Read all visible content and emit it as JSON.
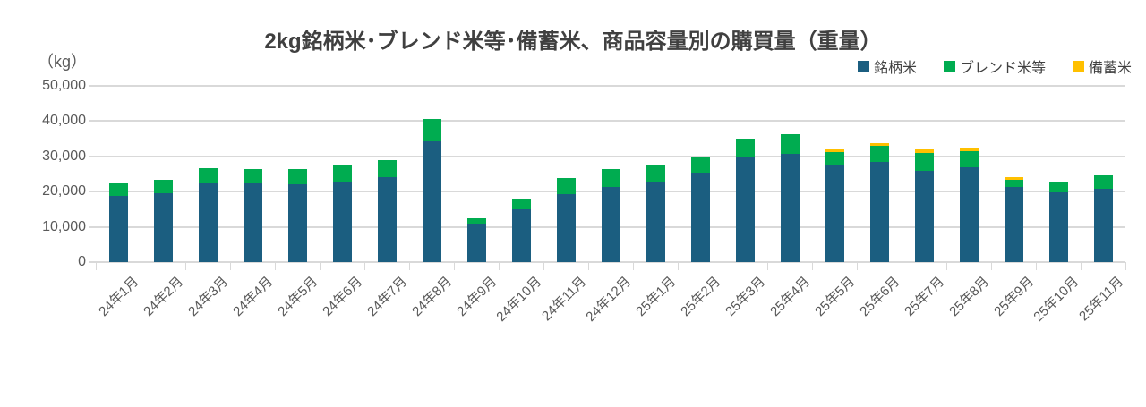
{
  "chart_data": {
    "type": "bar",
    "stacked": true,
    "title": "2kg銘柄米･ブレンド米等･備蓄米、商品容量別の購買量（重量）",
    "unit_label": "（kg）",
    "grid": true,
    "legend_position": "top-right",
    "ylim": [
      0,
      50000
    ],
    "ytick_interval": 10000,
    "ytick_labels": [
      "50,000",
      "40,000",
      "30,000",
      "20,000",
      "10,000",
      "0"
    ],
    "categories": [
      "24年1月",
      "24年2月",
      "24年3月",
      "24年4月",
      "24年5月",
      "24年6月",
      "24年7月",
      "24年8月",
      "24年9月",
      "24年10月",
      "24年11月",
      "24年12月",
      "25年1月",
      "25年2月",
      "25年3月",
      "25年4月",
      "25年5月",
      "25年6月",
      "25年7月",
      "25年8月",
      "25年9月",
      "25年10月",
      "25年11月"
    ],
    "series": [
      {
        "name": "銘柄米",
        "color": "#1B5E80",
        "values": [
          18800,
          19600,
          22300,
          22300,
          22100,
          22800,
          24200,
          34300,
          10800,
          15000,
          19300,
          21400,
          22900,
          25300,
          29800,
          30700,
          27300,
          28500,
          26000,
          27000,
          21200,
          19700,
          20800
        ]
      },
      {
        "name": "ブレンド米等",
        "color": "#00AC50",
        "values": [
          3500,
          3800,
          4300,
          4100,
          4200,
          4700,
          4700,
          6400,
          1700,
          2900,
          4500,
          5000,
          4800,
          4500,
          5200,
          5700,
          4000,
          4500,
          4900,
          4400,
          2100,
          3100,
          3900
        ]
      },
      {
        "name": "備蓄米",
        "color": "#FFC000",
        "values": [
          0,
          0,
          0,
          0,
          0,
          0,
          0,
          0,
          0,
          0,
          0,
          0,
          0,
          0,
          0,
          0,
          800,
          800,
          1000,
          900,
          800,
          0,
          0
        ]
      }
    ]
  },
  "colors": {
    "title_text": "#404040",
    "axis_text": "#595959",
    "gridline": "#D9D9D9",
    "background": "#FFFFFF"
  }
}
